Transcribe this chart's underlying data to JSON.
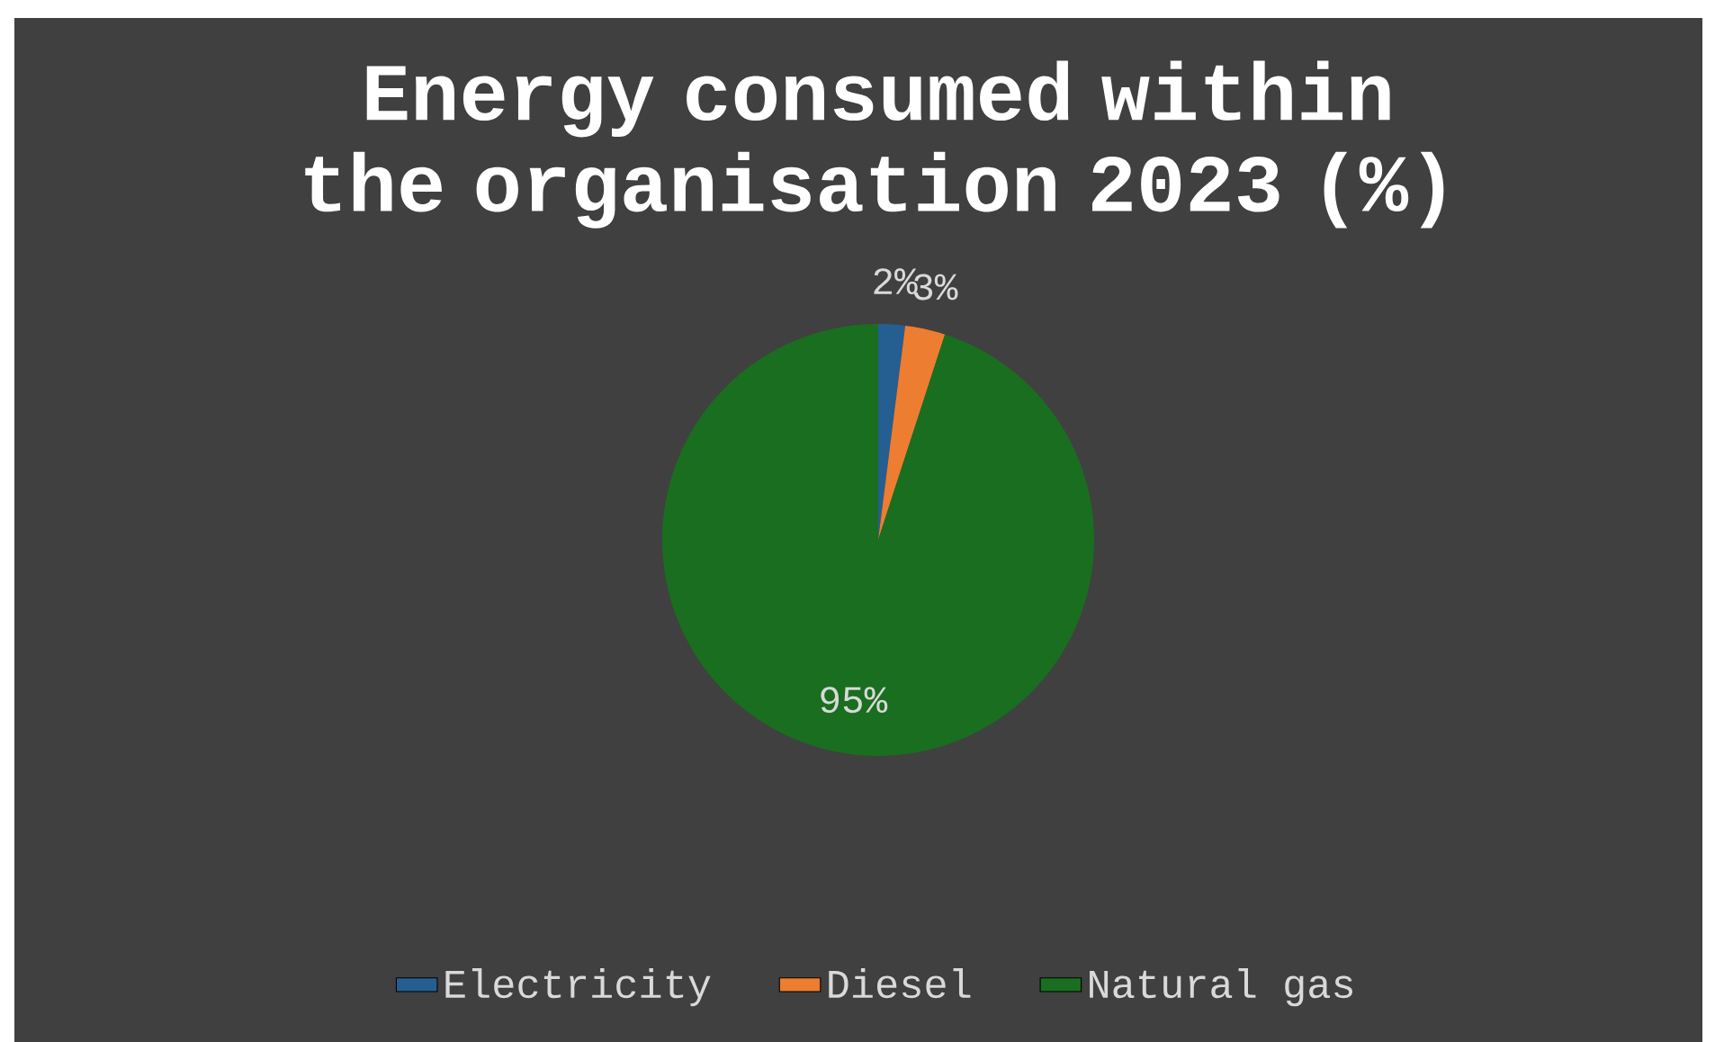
{
  "chart_data": {
    "type": "pie",
    "title": "Energy consumed within the organisation 2023 (%)",
    "categories": [
      "Electricity",
      "Diesel",
      "Natural gas"
    ],
    "values": [
      2,
      3,
      95
    ],
    "value_labels": [
      "2%",
      "3%",
      "95%"
    ],
    "colors": [
      "#255e91",
      "#ed7d31",
      "#1a6e1f"
    ],
    "legend": "bottom"
  }
}
